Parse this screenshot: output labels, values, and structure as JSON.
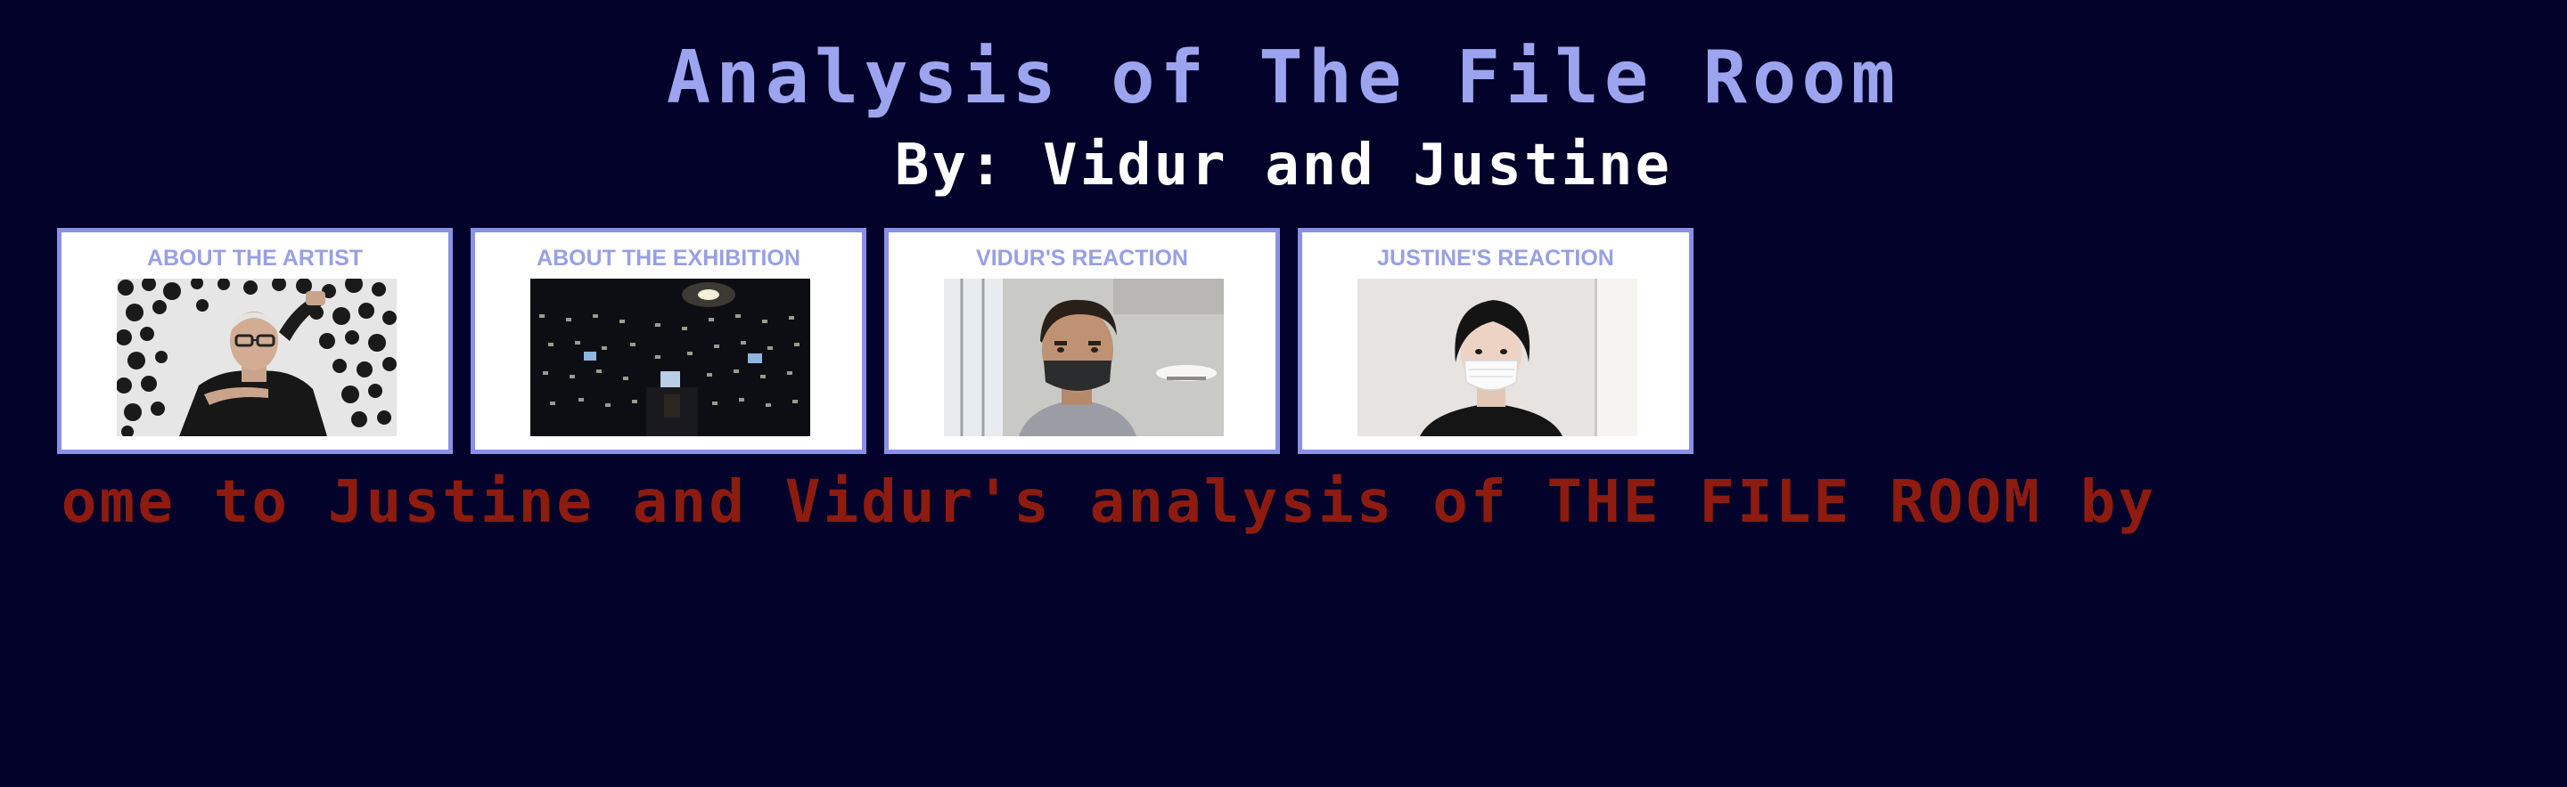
{
  "header": {
    "title": "Analysis of The File Room",
    "subtitle": "By: Vidur and Justine"
  },
  "cards": [
    {
      "label": "ABOUT THE ARTIST"
    },
    {
      "label": "ABOUT THE EXHIBITION"
    },
    {
      "label": "VIDUR'S REACTION"
    },
    {
      "label": "JUSTINE'S REACTION"
    }
  ],
  "marquee": {
    "text": "come to Justine and Vidur's analysis of THE FILE ROOM by"
  },
  "colors": {
    "background": "#02022a",
    "title": "#9da4ef",
    "subtitle": "#ffffff",
    "card_border": "#8a90e6",
    "card_label": "#98a0e4",
    "marquee": "#8e1b10"
  }
}
